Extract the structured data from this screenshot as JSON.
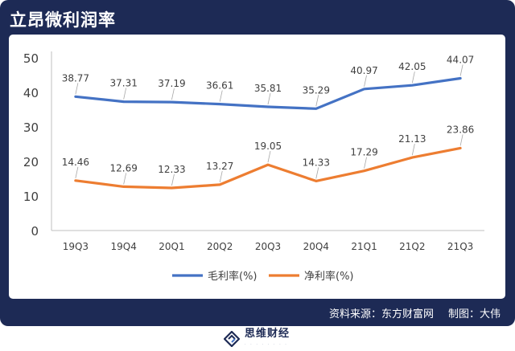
{
  "header": {
    "title": "立昂微利润率"
  },
  "footer": {
    "source": "资料来源：东方财富网",
    "author": "制图：大伟"
  },
  "brand": {
    "name": "思维财经",
    "icon": "logo-icon"
  },
  "colors": {
    "gross": "#4472c4",
    "net": "#ed7d31",
    "frame": "#1d2a55",
    "axis": "#bfbfbf"
  },
  "chart_data": {
    "type": "line",
    "title": "立昂微利润率",
    "categories": [
      "19Q3",
      "19Q4",
      "20Q1",
      "20Q2",
      "20Q3",
      "20Q4",
      "21Q1",
      "21Q2",
      "21Q3"
    ],
    "series": [
      {
        "name": "毛利率(%)",
        "values": [
          38.77,
          37.31,
          37.19,
          36.61,
          35.81,
          35.29,
          40.97,
          42.05,
          44.07
        ]
      },
      {
        "name": "净利率(%)",
        "values": [
          14.46,
          12.69,
          12.33,
          13.27,
          19.05,
          14.33,
          17.29,
          21.13,
          23.86
        ]
      }
    ],
    "labels": [
      [
        "38.77",
        "37.31",
        "37.19",
        "36.61",
        "35.81",
        "35.29",
        "40.97",
        "42.05",
        "44.07"
      ],
      [
        "14.46",
        "12.69",
        "12.33",
        "13.27",
        "19.05",
        "14.33",
        "17.29",
        "21.13",
        "23.86"
      ]
    ],
    "yticks": [
      "0",
      "10",
      "20",
      "30",
      "40",
      "50"
    ],
    "ylim": [
      0,
      50
    ],
    "grid": false,
    "legend": "bottom"
  }
}
